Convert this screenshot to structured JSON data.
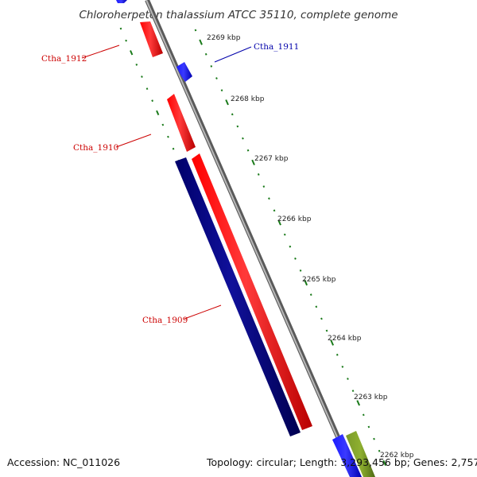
{
  "title": "Chloroherpeton thalassium ATCC 35110, complete genome",
  "footer": {
    "accession": "Accession: NC_011026",
    "summary": "Topology: circular; Length: 3,293,456 bp; Genes: 2,757"
  },
  "scale_labels": [
    "2269 kbp",
    "2268 kbp",
    "2267 kbp",
    "2266 kbp",
    "2265 kbp",
    "2264 kbp",
    "2263 kbp",
    "2262 kbp"
  ],
  "gene_labels": {
    "ctha_1912": "Ctha_1912",
    "ctha_1911": "Ctha_1911",
    "ctha_1910": "Ctha_1910",
    "ctha_1909": "Ctha_1909"
  },
  "colors": {
    "forward_strand": "#ff0000",
    "reverse_strand_blue": "#0000ff",
    "reverse_strand_navy": "#000080",
    "other_feature": "#6b8e23",
    "ticks": "#1a7a1a",
    "backbone": "#888888",
    "label_red": "#cc0000",
    "label_blue": "#0000aa"
  }
}
